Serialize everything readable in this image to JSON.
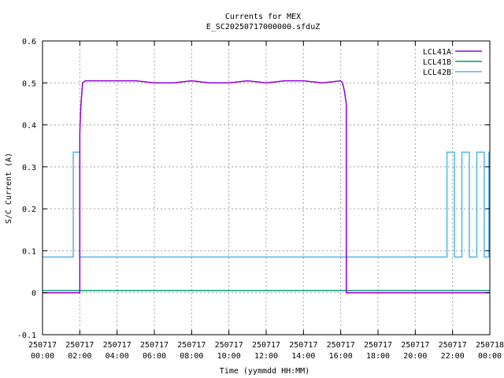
{
  "chart_data": {
    "type": "line",
    "title": "Currents for MEX",
    "subtitle": "E_SC20250717000000.sfduZ",
    "xlabel": "Time (yymmdd HH:MM)",
    "ylabel": "S/C Current (A)",
    "x_unit": "hours",
    "xlim": [
      0,
      24
    ],
    "ylim": [
      -0.1,
      0.6
    ],
    "grid": true,
    "legend_position": "top-right",
    "x_ticks": [
      {
        "x": 0,
        "date": "250717",
        "time": "00:00"
      },
      {
        "x": 2,
        "date": "250717",
        "time": "02:00"
      },
      {
        "x": 4,
        "date": "250717",
        "time": "04:00"
      },
      {
        "x": 6,
        "date": "250717",
        "time": "06:00"
      },
      {
        "x": 8,
        "date": "250717",
        "time": "08:00"
      },
      {
        "x": 10,
        "date": "250717",
        "time": "10:00"
      },
      {
        "x": 12,
        "date": "250717",
        "time": "12:00"
      },
      {
        "x": 14,
        "date": "250717",
        "time": "14:00"
      },
      {
        "x": 16,
        "date": "250717",
        "time": "16:00"
      },
      {
        "x": 18,
        "date": "250717",
        "time": "18:00"
      },
      {
        "x": 20,
        "date": "250717",
        "time": "20:00"
      },
      {
        "x": 22,
        "date": "250717",
        "time": "22:00"
      },
      {
        "x": 24,
        "date": "250718",
        "time": "00:00"
      }
    ],
    "y_ticks": [
      {
        "y": -0.1,
        "label": "-0.1"
      },
      {
        "y": 0,
        "label": "0"
      },
      {
        "y": 0.1,
        "label": "0.1"
      },
      {
        "y": 0.2,
        "label": "0.2"
      },
      {
        "y": 0.3,
        "label": "0.3"
      },
      {
        "y": 0.4,
        "label": "0.4"
      },
      {
        "y": 0.5,
        "label": "0.5"
      },
      {
        "y": 0.6,
        "label": "0.6"
      }
    ],
    "series": [
      {
        "name": "LCL41A",
        "color": "#9400d3",
        "x": [
          0,
          2.0,
          2.0,
          2.05,
          2.15,
          2.3,
          3,
          4,
          5,
          6,
          7,
          8,
          9,
          10,
          11,
          12,
          13,
          14,
          15,
          16,
          16.1,
          16.2,
          16.3,
          16.3,
          17,
          18,
          20,
          22,
          24
        ],
        "y": [
          0,
          0,
          0.38,
          0.44,
          0.5,
          0.505,
          0.505,
          0.505,
          0.505,
          0.5,
          0.5,
          0.505,
          0.5,
          0.5,
          0.505,
          0.5,
          0.505,
          0.505,
          0.5,
          0.505,
          0.5,
          0.48,
          0.45,
          0,
          0,
          0,
          0,
          0,
          0
        ]
      },
      {
        "name": "LCL41B",
        "color": "#009e73",
        "x": [
          0,
          24
        ],
        "y": [
          0.005,
          0.005
        ]
      },
      {
        "name": "LCL42B",
        "color": "#56b4e9",
        "x": [
          0,
          1.65,
          1.65,
          2.0,
          2.0,
          21.7,
          21.7,
          22.1,
          22.1,
          22.5,
          22.5,
          22.9,
          22.9,
          23.3,
          23.3,
          23.7,
          23.7,
          23.95,
          23.95,
          24
        ],
        "y": [
          0.085,
          0.085,
          0.335,
          0.335,
          0.085,
          0.085,
          0.335,
          0.335,
          0.085,
          0.085,
          0.335,
          0.335,
          0.085,
          0.085,
          0.335,
          0.335,
          0.085,
          0.085,
          0.335,
          0.335
        ]
      }
    ]
  }
}
